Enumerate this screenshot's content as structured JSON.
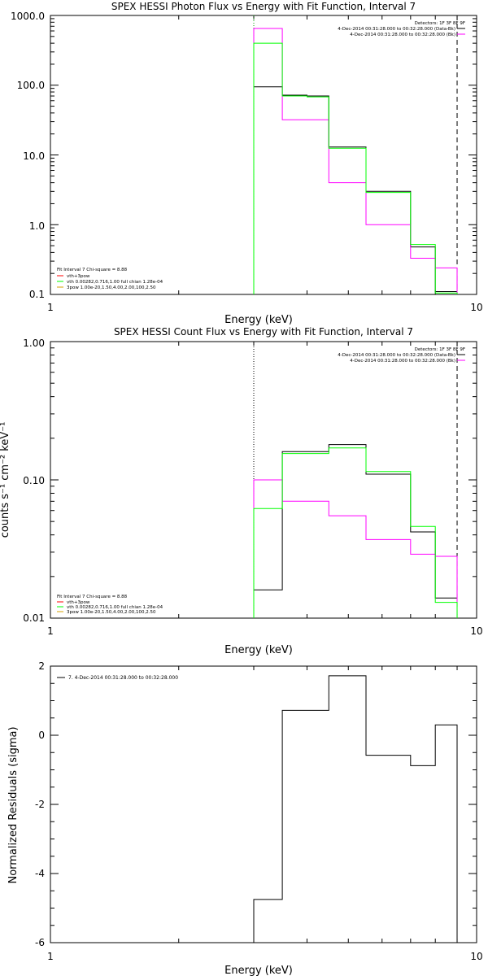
{
  "chart_data": [
    {
      "type": "line",
      "title": "SPEX HESSI Photon Flux vs Energy with Fit Function, Interval 7",
      "xlabel": "Energy (keV)",
      "ylabel": "",
      "xscale": "log",
      "yscale": "log",
      "xlim": [
        1,
        10
      ],
      "ylim": [
        0.1,
        1000
      ],
      "xticks": [
        "1",
        "10"
      ],
      "yticks": [
        "0.1",
        "1.0",
        "10.0",
        "100.0",
        "1000.0"
      ],
      "vlines": [
        {
          "x": 3.0,
          "style": "dotted",
          "color": "#00aa00"
        },
        {
          "x": 9.0,
          "style": "dashed",
          "color": "#000000"
        }
      ],
      "bin_edges": [
        3.0,
        3.5,
        4.0,
        4.5,
        5.0,
        5.5,
        6.0,
        7.0,
        8.0,
        9.0
      ],
      "series": [
        {
          "color": "#000000",
          "values": [
            95,
            72,
            70,
            13,
            13,
            3.0,
            3.0,
            0.48,
            0.11
          ]
        },
        {
          "color": "#ff00ff",
          "values": [
            650,
            32,
            32,
            4.0,
            4.0,
            1.0,
            1.0,
            0.33,
            0.24
          ]
        },
        {
          "color": "#00ff00",
          "values": [
            400,
            70,
            68,
            12.5,
            12.5,
            2.9,
            2.9,
            0.52,
            0.105
          ]
        }
      ],
      "legend_header": "Detectors: 1F 3F 8F 9F",
      "legend_entries": [
        {
          "text": "4-Dec-2014 00:31:28.000 to 00:32:28.000 (Data-Bk)",
          "color": "#000000"
        },
        {
          "text": "4-Dec-2014 00:31:28.000 to 00:32:28.000 (Bk)",
          "color": "#ff00ff"
        }
      ],
      "fit_header": "Fit Interval 7   Chi-square = 8.88",
      "fit_entries": [
        {
          "text": "vth+3pow",
          "color": "#ff0000"
        },
        {
          "text": "vth 0.00282,0.716,1.00  full chian 1.28e-04",
          "color": "#00ff00"
        },
        {
          "text": "3pow 1.00e-20,1.50,4.00,2.00,100,2.50",
          "color": "#d4a000"
        }
      ]
    },
    {
      "type": "line",
      "title": "SPEX HESSI Count Flux vs Energy with Fit Function, Interval 7",
      "xlabel": "Energy (keV)",
      "ylabel": "counts s⁻¹ cm⁻² keV⁻¹",
      "xscale": "log",
      "yscale": "log",
      "xlim": [
        1,
        10
      ],
      "ylim": [
        0.01,
        1.0
      ],
      "xticks": [
        "1",
        "10"
      ],
      "yticks": [
        "0.01",
        "0.10",
        "1.00"
      ],
      "vlines": [
        {
          "x": 3.0,
          "style": "dotted",
          "color": "#000000"
        },
        {
          "x": 9.0,
          "style": "dashed",
          "color": "#000000"
        }
      ],
      "bin_edges": [
        3.0,
        3.5,
        4.0,
        4.5,
        5.0,
        5.5,
        6.0,
        7.0,
        8.0,
        9.0
      ],
      "series": [
        {
          "color": "#000000",
          "values": [
            0.016,
            0.16,
            0.16,
            0.18,
            0.18,
            0.11,
            0.11,
            0.042,
            0.014
          ]
        },
        {
          "color": "#ff00ff",
          "values": [
            0.1,
            0.07,
            0.07,
            0.055,
            0.055,
            0.037,
            0.037,
            0.029,
            0.028
          ]
        },
        {
          "color": "#00ff00",
          "values": [
            0.062,
            0.155,
            0.155,
            0.17,
            0.17,
            0.115,
            0.115,
            0.046,
            0.013
          ]
        }
      ],
      "legend_header": "Detectors: 1F 3F 8F 9F",
      "legend_entries": [
        {
          "text": "4-Dec-2014 00:31:28.000 to 00:32:28.000 (Data-Bk)",
          "color": "#000000"
        },
        {
          "text": "4-Dec-2014 00:31:28.000 to 00:32:28.000 (Bk)",
          "color": "#ff00ff"
        }
      ],
      "fit_header": "Fit Interval 7   Chi-square = 8.88",
      "fit_entries": [
        {
          "text": "vth+3pow",
          "color": "#ff0000"
        },
        {
          "text": "vth 0.00282,0.716,1.00  full chian 1.28e-04",
          "color": "#00ff00"
        },
        {
          "text": "3pow 1.00e-20,1.50,4.00,2.00,100,2.50",
          "color": "#d4a000"
        }
      ]
    },
    {
      "type": "line",
      "title": "",
      "xlabel": "Energy (keV)",
      "ylabel": "Normalized Residuals (sigma)",
      "xscale": "log",
      "yscale": "linear",
      "xlim": [
        1,
        10
      ],
      "ylim": [
        -6,
        2
      ],
      "xticks": [
        "1",
        "10"
      ],
      "yticks": [
        "-6",
        "-4",
        "-2",
        "0",
        "2"
      ],
      "vlines": [],
      "bin_edges": [
        3.0,
        3.5,
        4.0,
        4.5,
        5.0,
        5.5,
        6.0,
        7.0,
        8.0,
        9.0
      ],
      "series": [
        {
          "color": "#000000",
          "values": [
            -4.75,
            0.72,
            0.72,
            1.72,
            1.72,
            -0.58,
            -0.58,
            -0.88,
            0.3
          ]
        }
      ],
      "legend_entries": [
        {
          "text": "7.  4-Dec-2014 00:31:28.000 to 00:32:28.000",
          "color": "#000000"
        }
      ]
    }
  ]
}
